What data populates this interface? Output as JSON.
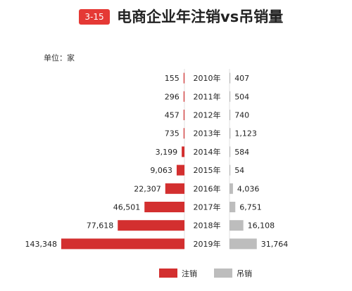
{
  "header": {
    "badge": "3-15",
    "title": "电商企业年注销vs吊销量"
  },
  "unit_label": "单位：家",
  "colors": {
    "cancel": "#d32f2f",
    "revoke": "#bdbdbd",
    "badge": "#e53935"
  },
  "chart_data": {
    "type": "bar",
    "title": "电商企业年注销vs吊销量",
    "categories": [
      "2010年",
      "2011年",
      "2012年",
      "2013年",
      "2014年",
      "2015年",
      "2016年",
      "2017年",
      "2018年",
      "2019年"
    ],
    "series": [
      {
        "name": "注销",
        "values": [
          155,
          296,
          457,
          735,
          3199,
          9063,
          22307,
          46501,
          77618,
          143348
        ],
        "labels": [
          "155",
          "296",
          "457",
          "735",
          "3,199",
          "9,063",
          "22,307",
          "46,501",
          "77,618",
          "143,348"
        ]
      },
      {
        "name": "吊销",
        "values": [
          407,
          504,
          740,
          1123,
          584,
          54,
          4036,
          6751,
          16108,
          31764
        ],
        "labels": [
          "407",
          "504",
          "740",
          "1,123",
          "584",
          "54",
          "4,036",
          "6,751",
          "16,108",
          "31,764"
        ]
      }
    ],
    "legend_position": "bottom",
    "xlim": [
      0,
      143348
    ]
  }
}
